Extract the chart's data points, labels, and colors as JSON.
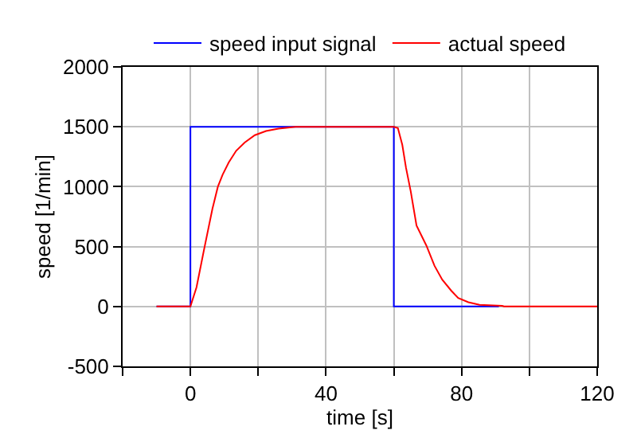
{
  "chart_data": {
    "type": "line",
    "xlabel": "time [s]",
    "ylabel": "speed [1/min]",
    "xlim": [
      -20,
      120
    ],
    "xticks": [
      {
        "value": -20,
        "label": null
      },
      0,
      {
        "value": 20,
        "label": null
      },
      40,
      {
        "value": 60,
        "label": null
      },
      80,
      {
        "value": 100,
        "label": null
      },
      120
    ],
    "ylim": [
      -500,
      2000
    ],
    "yticks": [
      -500,
      0,
      500,
      1000,
      1500,
      2000
    ],
    "grid": true,
    "legend": "top",
    "series": [
      {
        "name": "speed input signal",
        "color": "#0000ff",
        "x": [
          -10,
          0,
          0,
          60,
          60,
          91
        ],
        "values": [
          0,
          0,
          1500,
          1500,
          0,
          0
        ]
      },
      {
        "name": "actual speed",
        "color": "#ff0000",
        "x": [
          -10,
          0,
          1.8,
          4.2,
          6.5,
          8.1,
          9.5,
          11.3,
          13.5,
          16,
          19,
          22.3,
          26,
          31,
          60,
          61.2,
          62.5,
          63.6,
          65,
          66.7,
          69.6,
          72,
          74.3,
          77,
          79,
          82,
          85.3,
          92,
          92.5,
          120
        ],
        "values": [
          0,
          0,
          160,
          500,
          816,
          1000,
          1100,
          1202,
          1300,
          1368,
          1430,
          1465,
          1485,
          1500,
          1500,
          1490,
          1350,
          1158,
          960,
          675,
          509,
          340,
          224,
          130,
          70,
          35,
          13,
          5,
          0,
          0
        ]
      }
    ]
  }
}
